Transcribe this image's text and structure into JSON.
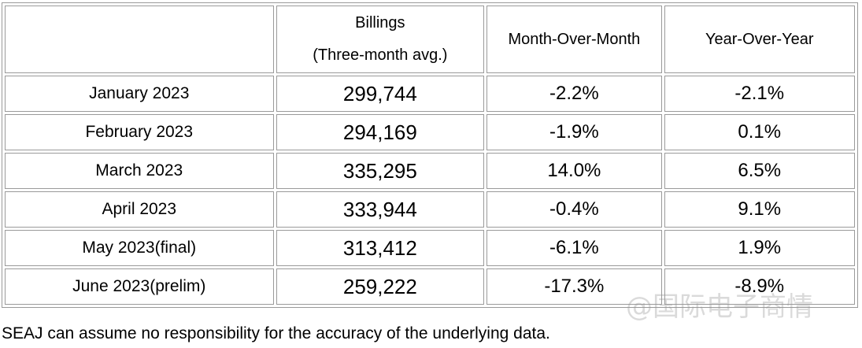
{
  "table": {
    "headers": {
      "month": "",
      "billings_line1": "Billings",
      "billings_line2": "(Three-month avg.)",
      "mom": "Month-Over-Month",
      "yoy": "Year-Over-Year"
    },
    "rows": [
      {
        "month": "January 2023",
        "billings": "299,744",
        "mom": "-2.2%",
        "yoy": "-2.1%"
      },
      {
        "month": "February 2023",
        "billings": "294,169",
        "mom": "-1.9%",
        "yoy": "0.1%"
      },
      {
        "month": "March 2023",
        "billings": "335,295",
        "mom": "14.0%",
        "yoy": "6.5%"
      },
      {
        "month": "April 2023",
        "billings": "333,944",
        "mom": "-0.4%",
        "yoy": "9.1%"
      },
      {
        "month": "May 2023(final)",
        "billings": "313,412",
        "mom": "-6.1%",
        "yoy": "1.9%"
      },
      {
        "month": "June 2023(prelim)",
        "billings": "259,222",
        "mom": "-17.3%",
        "yoy": "-8.9%"
      }
    ]
  },
  "footnote": "SEAJ can assume no responsibility for the accuracy of the underlying data.",
  "watermark": "@国际电子商情"
}
